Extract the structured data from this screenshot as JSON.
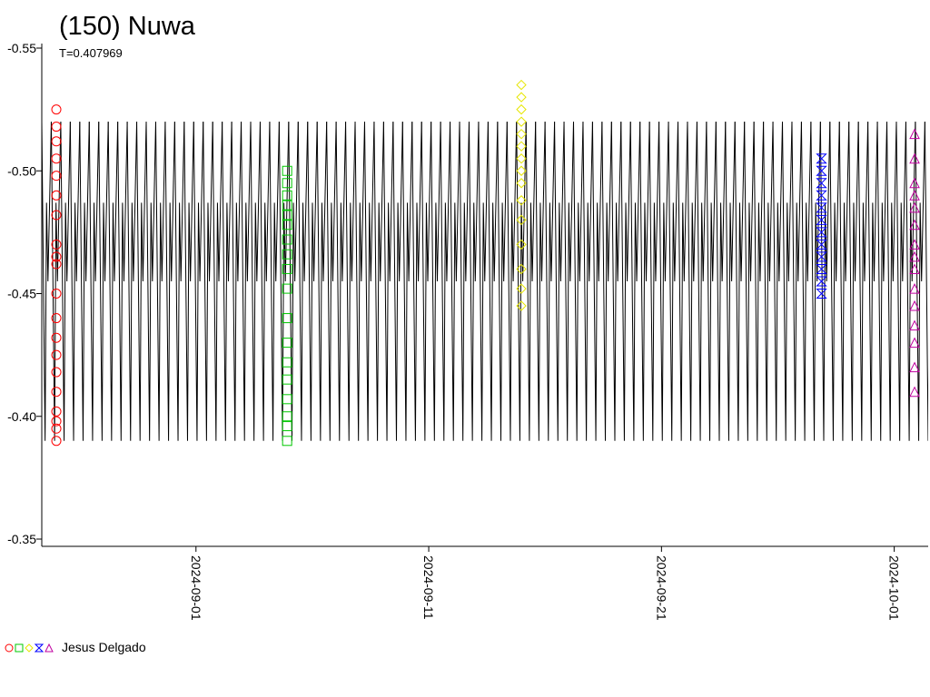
{
  "chart_data": {
    "type": "lightcurve",
    "title": "(150) Nuwa",
    "subtitle": "T=0.407969",
    "period": 0.407969,
    "ylim": [
      -0.35,
      -0.55
    ],
    "yticks": [
      -0.55,
      {
        "value": -0.5,
        "label": "-0.50"
      },
      -0.45,
      {
        "value": -0.4,
        "label": "-0.40"
      },
      -0.35
    ],
    "xlim": [
      "2024-08-25T09:00",
      "2024-10-02T11:00"
    ],
    "xticks": [
      "2024-09-01",
      "2024-09-11",
      "2024-09-21",
      "2024-10-01"
    ],
    "model": {
      "color": "#000000",
      "phase": [
        0,
        0.35,
        0.5,
        0.65,
        1
      ],
      "values": [
        -0.52,
        -0.39,
        -0.487,
        -0.455,
        -0.52
      ]
    },
    "series": [
      {
        "color": "#ff0000",
        "marker": "circle",
        "x": "2024-08-26T00:00",
        "values": [
          -0.525,
          -0.518,
          -0.512,
          -0.505,
          -0.498,
          -0.49,
          -0.482,
          -0.47,
          -0.465,
          -0.462,
          -0.45,
          -0.44,
          -0.432,
          -0.425,
          -0.418,
          -0.41,
          -0.402,
          -0.398,
          -0.395,
          -0.39
        ]
      },
      {
        "color": "#00c800",
        "marker": "square",
        "x": "2024-09-04T22:00",
        "values": [
          -0.5,
          -0.495,
          -0.49,
          -0.486,
          -0.482,
          -0.478,
          -0.472,
          -0.466,
          -0.46,
          -0.452,
          -0.44,
          -0.43,
          -0.422,
          -0.415,
          -0.407,
          -0.4,
          -0.396,
          -0.39
        ]
      },
      {
        "color": "#e6e600",
        "marker": "diamond",
        "x": "2024-09-14T23:30",
        "values": [
          -0.535,
          -0.53,
          -0.525,
          -0.52,
          -0.515,
          -0.51,
          -0.505,
          -0.5,
          -0.495,
          -0.488,
          -0.48,
          -0.47,
          -0.46,
          -0.452,
          -0.445
        ]
      },
      {
        "color": "#0000ff",
        "marker": "hourglass",
        "x": "2024-09-27T21:00",
        "values": [
          -0.505,
          -0.5,
          -0.495,
          -0.49,
          -0.485,
          -0.48,
          -0.475,
          -0.47,
          -0.465,
          -0.46,
          -0.455,
          -0.45
        ]
      },
      {
        "color": "#c000a0",
        "marker": "triangle",
        "x": "2024-10-01T21:00",
        "values": [
          -0.515,
          -0.505,
          -0.495,
          -0.49,
          -0.485,
          -0.478,
          -0.47,
          -0.465,
          -0.46,
          -0.452,
          -0.445,
          -0.437,
          -0.43,
          -0.42,
          -0.41
        ]
      }
    ],
    "legend_label": "Jesus Delgado"
  }
}
